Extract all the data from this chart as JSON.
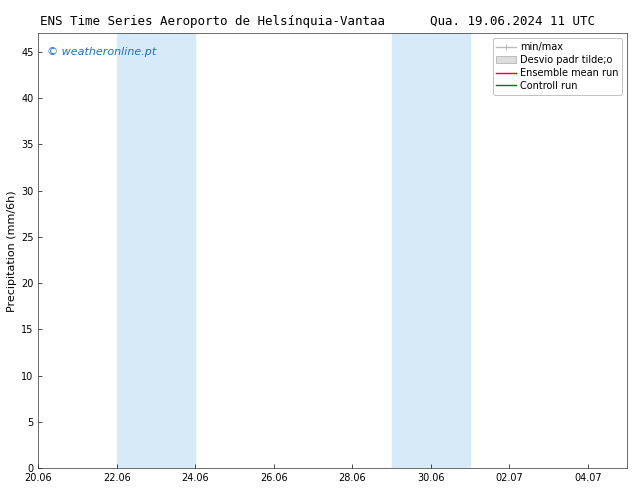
{
  "title_left": "ENS Time Series Aeroporto de Helsínquia-Vantaa",
  "title_right": "Qua. 19.06.2024 11 UTC",
  "ylabel": "Precipitation (mm/6h)",
  "watermark": "© weatheronline.pt",
  "watermark_color": "#1a6fcc",
  "ylim": [
    0,
    47
  ],
  "yticks": [
    0,
    5,
    10,
    15,
    20,
    25,
    30,
    35,
    40,
    45
  ],
  "bg_color": "#ffffff",
  "plot_bg_color": "#ffffff",
  "shaded_regions": [
    {
      "x_start": 2.0,
      "x_end": 4.0,
      "color": "#d6eaf8"
    },
    {
      "x_start": 9.0,
      "x_end": 11.0,
      "color": "#d6eaf8"
    }
  ],
  "xtick_positions": [
    0,
    2,
    4,
    6,
    8,
    10,
    12,
    14
  ],
  "xtick_labels": [
    "20.06",
    "22.06",
    "24.06",
    "26.06",
    "28.06",
    "30.06",
    "02.07",
    "04.07"
  ],
  "xlim": [
    0,
    15
  ],
  "legend_min_max_color": "#bbbbbb",
  "legend_std_color": "#dddddd",
  "legend_ensemble_color": "#ff0000",
  "legend_control_color": "#008000",
  "font_size_title": 9,
  "font_size_ylabel": 8,
  "font_size_ticks": 7,
  "font_size_legend": 7,
  "font_size_watermark": 8
}
